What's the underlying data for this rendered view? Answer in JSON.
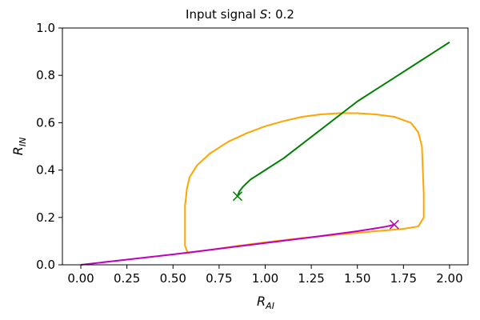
{
  "chart_data": {
    "type": "line",
    "title_prefix": "Input signal ",
    "title_var": "S",
    "title_suffix": ": 0.2",
    "xlabel_main": "R",
    "xlabel_sub": "AI",
    "ylabel_main": "R",
    "ylabel_sub": "IN",
    "xlim": [
      -0.1,
      2.1
    ],
    "ylim": [
      0.0,
      1.0
    ],
    "xticks": [
      0.0,
      0.25,
      0.5,
      0.75,
      1.0,
      1.25,
      1.5,
      1.75,
      2.0
    ],
    "xtick_labels": [
      "0.00",
      "0.25",
      "0.50",
      "0.75",
      "1.00",
      "1.25",
      "1.50",
      "1.75",
      "2.00"
    ],
    "yticks": [
      0.0,
      0.2,
      0.4,
      0.6,
      0.8,
      1.0
    ],
    "ytick_labels": [
      "0.0",
      "0.2",
      "0.4",
      "0.6",
      "0.8",
      "1.0"
    ],
    "grid": false,
    "series": [
      {
        "color": "#ffa500",
        "points": [
          [
            0.58,
            0.05
          ],
          [
            0.7,
            0.063
          ],
          [
            0.85,
            0.08
          ],
          [
            1.0,
            0.095
          ],
          [
            1.2,
            0.113
          ],
          [
            1.4,
            0.128
          ],
          [
            1.6,
            0.142
          ],
          [
            1.75,
            0.152
          ],
          [
            1.83,
            0.162
          ],
          [
            1.86,
            0.2
          ],
          [
            1.86,
            0.3
          ],
          [
            1.855,
            0.4
          ],
          [
            1.85,
            0.5
          ],
          [
            1.83,
            0.56
          ],
          [
            1.79,
            0.6
          ],
          [
            1.7,
            0.625
          ],
          [
            1.6,
            0.635
          ],
          [
            1.5,
            0.64
          ],
          [
            1.4,
            0.64
          ],
          [
            1.3,
            0.635
          ],
          [
            1.2,
            0.625
          ],
          [
            1.1,
            0.607
          ],
          [
            1.0,
            0.585
          ],
          [
            0.9,
            0.556
          ],
          [
            0.8,
            0.52
          ],
          [
            0.7,
            0.47
          ],
          [
            0.63,
            0.42
          ],
          [
            0.59,
            0.37
          ],
          [
            0.575,
            0.32
          ],
          [
            0.57,
            0.28
          ],
          [
            0.565,
            0.25
          ],
          [
            0.565,
            0.15
          ],
          [
            0.565,
            0.08
          ],
          [
            0.575,
            0.06
          ],
          [
            0.58,
            0.05
          ]
        ]
      },
      {
        "color": "#008000",
        "points": [
          [
            0.85,
            0.29
          ],
          [
            0.86,
            0.31
          ],
          [
            0.88,
            0.33
          ],
          [
            0.92,
            0.36
          ],
          [
            1.0,
            0.4
          ],
          [
            1.1,
            0.45
          ],
          [
            1.2,
            0.51
          ],
          [
            1.3,
            0.57
          ],
          [
            1.4,
            0.63
          ],
          [
            1.5,
            0.69
          ],
          [
            1.6,
            0.74
          ],
          [
            1.7,
            0.79
          ],
          [
            1.8,
            0.84
          ],
          [
            1.9,
            0.89
          ],
          [
            2.0,
            0.94
          ]
        ]
      },
      {
        "color": "#c000c0",
        "points": [
          [
            0.0,
            0.0
          ],
          [
            0.25,
            0.022
          ],
          [
            0.5,
            0.044
          ],
          [
            0.75,
            0.068
          ],
          [
            1.0,
            0.092
          ],
          [
            1.25,
            0.116
          ],
          [
            1.5,
            0.142
          ],
          [
            1.6,
            0.154
          ],
          [
            1.66,
            0.162
          ],
          [
            1.7,
            0.17
          ]
        ]
      }
    ],
    "markers": [
      {
        "x": 0.85,
        "y": 0.29,
        "symbol": "x",
        "color": "#008000"
      },
      {
        "x": 1.7,
        "y": 0.17,
        "symbol": "x",
        "color": "#c000c0"
      }
    ]
  }
}
